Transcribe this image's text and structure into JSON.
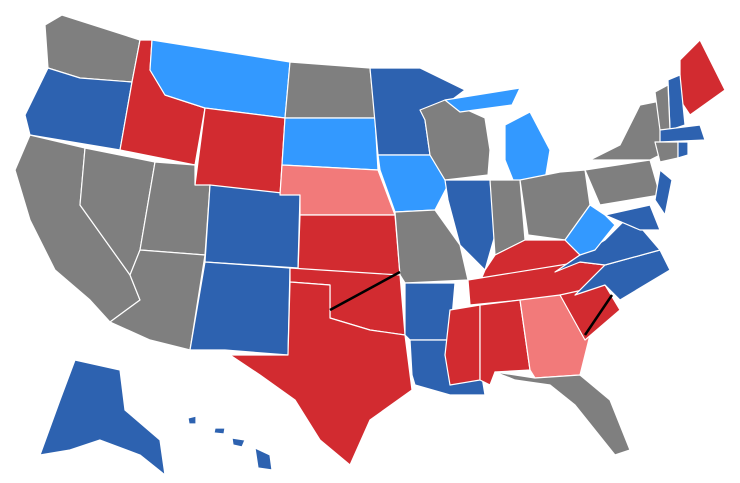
{
  "legend_colors": {
    "gray": "#7f7f7f",
    "dark_blue": "#2d62b0",
    "light_blue": "#3399ff",
    "red": "#d22b30",
    "pink": "#f27a7a"
  },
  "regions": {
    "WA": "gray",
    "OR": "dark_blue",
    "CA": "gray",
    "NV": "gray",
    "ID": "red",
    "MT": "light_blue",
    "WY": "red",
    "UT": "gray",
    "AZ": "gray",
    "CO": "dark_blue",
    "NM": "dark_blue",
    "ND": "gray",
    "SD": "light_blue",
    "NE": "pink",
    "KS": "red",
    "OK": "red",
    "TX": "red",
    "MN": "dark_blue",
    "IA": "light_blue",
    "MO": "gray",
    "AR": "dark_blue",
    "LA": "dark_blue",
    "WI": "gray",
    "IL": "dark_blue",
    "MI_UP": "light_blue",
    "MI": "light_blue",
    "IN": "gray",
    "OH": "gray",
    "KY": "red",
    "TN": "red",
    "MS": "red",
    "AL": "red",
    "GA": "pink",
    "FL": "gray",
    "SC": "red",
    "NC": "dark_blue",
    "VA": "dark_blue",
    "WV": "light_blue",
    "PA": "gray",
    "NY": "gray",
    "NJ": "dark_blue",
    "MD": "dark_blue",
    "VT": "gray",
    "NH": "dark_blue",
    "ME": "red",
    "MA": "dark_blue",
    "CT": "gray",
    "RI": "dark_blue",
    "AK": "dark_blue",
    "HI1": "dark_blue",
    "HI2": "dark_blue",
    "HI3": "dark_blue",
    "HI4": "dark_blue"
  }
}
